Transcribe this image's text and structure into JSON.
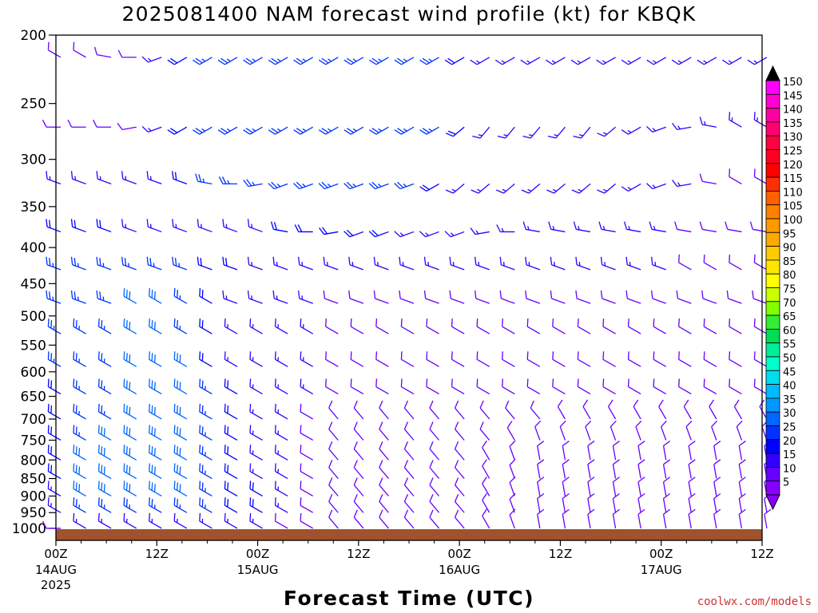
{
  "chart_data": {
    "type": "wind_barb_time_height",
    "title": "2025081400 NAM forecast wind profile (kt) for KBQK",
    "xlabel": "Forecast Time (UTC)",
    "credit": "coolwx.com/models",
    "credit_color": "#cc3333",
    "ground_color": "#a0522d",
    "y_axis": {
      "type": "log",
      "range": [
        1040,
        200
      ],
      "ticks": [
        200,
        250,
        300,
        350,
        400,
        450,
        500,
        550,
        600,
        650,
        700,
        750,
        800,
        850,
        900,
        950,
        1000
      ]
    },
    "x_axis": {
      "range": [
        "2025-08-14 00Z",
        "2025-08-17 12Z"
      ],
      "ticks": [
        {
          "label": "00Z",
          "sublabel": "14AUG",
          "sublabel2": "2025"
        },
        {
          "label": "12Z",
          "sublabel": "",
          "sublabel2": ""
        },
        {
          "label": "00Z",
          "sublabel": "15AUG",
          "sublabel2": ""
        },
        {
          "label": "12Z",
          "sublabel": "",
          "sublabel2": ""
        },
        {
          "label": "00Z",
          "sublabel": "16AUG",
          "sublabel2": ""
        },
        {
          "label": "12Z",
          "sublabel": "",
          "sublabel2": ""
        },
        {
          "label": "00Z",
          "sublabel": "17AUG",
          "sublabel2": ""
        },
        {
          "label": "12Z",
          "sublabel": "",
          "sublabel2": ""
        }
      ]
    },
    "forecast_times_h": [
      0,
      3,
      6,
      9,
      12,
      15,
      18,
      21,
      24,
      27,
      30,
      33,
      36,
      39,
      42,
      45,
      48,
      51,
      54,
      57,
      60,
      63,
      66,
      69,
      72,
      75,
      78,
      81,
      84
    ],
    "barb_levels_hpa": [
      215,
      270,
      325,
      380,
      430,
      480,
      530,
      590,
      645,
      700,
      750,
      800,
      850,
      900,
      950,
      1000
    ],
    "wind_speed_kt_by_level": [
      [
        10,
        10,
        10,
        10,
        15,
        20,
        25,
        25,
        25,
        25,
        25,
        25,
        25,
        25,
        25,
        25,
        20,
        15,
        15,
        15,
        15,
        15,
        15,
        15,
        15,
        15,
        15,
        15,
        15
      ],
      [
        10,
        10,
        10,
        10,
        15,
        20,
        25,
        25,
        25,
        25,
        25,
        25,
        25,
        25,
        25,
        25,
        20,
        15,
        15,
        15,
        15,
        15,
        15,
        15,
        15,
        15,
        15,
        15,
        15
      ],
      [
        15,
        15,
        15,
        15,
        15,
        20,
        25,
        25,
        25,
        25,
        25,
        25,
        25,
        25,
        25,
        20,
        15,
        15,
        15,
        15,
        15,
        15,
        15,
        15,
        15,
        15,
        10,
        10,
        10
      ],
      [
        20,
        20,
        20,
        15,
        15,
        15,
        15,
        15,
        15,
        20,
        20,
        20,
        20,
        20,
        15,
        15,
        15,
        15,
        15,
        15,
        15,
        15,
        15,
        15,
        15,
        10,
        10,
        10,
        10
      ],
      [
        25,
        25,
        25,
        25,
        25,
        25,
        20,
        20,
        15,
        15,
        15,
        15,
        15,
        15,
        15,
        15,
        15,
        15,
        15,
        15,
        15,
        15,
        15,
        15,
        15,
        10,
        10,
        10,
        10
      ],
      [
        25,
        25,
        25,
        30,
        30,
        25,
        20,
        15,
        15,
        15,
        15,
        10,
        10,
        10,
        10,
        10,
        10,
        10,
        10,
        10,
        10,
        10,
        10,
        10,
        10,
        10,
        10,
        10,
        10
      ],
      [
        25,
        25,
        25,
        30,
        30,
        25,
        20,
        15,
        15,
        15,
        15,
        10,
        10,
        10,
        10,
        10,
        10,
        10,
        10,
        10,
        10,
        10,
        10,
        10,
        10,
        10,
        10,
        10,
        10
      ],
      [
        25,
        25,
        25,
        30,
        30,
        30,
        20,
        15,
        15,
        15,
        15,
        10,
        10,
        10,
        10,
        10,
        10,
        10,
        10,
        10,
        10,
        10,
        10,
        10,
        10,
        10,
        10,
        10,
        10
      ],
      [
        20,
        25,
        25,
        30,
        30,
        30,
        25,
        20,
        15,
        15,
        15,
        10,
        10,
        10,
        10,
        10,
        10,
        10,
        10,
        10,
        10,
        10,
        10,
        10,
        10,
        10,
        10,
        10,
        10
      ],
      [
        20,
        25,
        25,
        30,
        30,
        30,
        25,
        20,
        15,
        15,
        10,
        10,
        10,
        10,
        10,
        10,
        10,
        10,
        10,
        10,
        10,
        10,
        10,
        10,
        10,
        10,
        10,
        10,
        10
      ],
      [
        20,
        25,
        30,
        30,
        30,
        30,
        25,
        20,
        15,
        15,
        10,
        10,
        10,
        10,
        10,
        10,
        10,
        10,
        10,
        10,
        10,
        10,
        10,
        10,
        10,
        10,
        10,
        10,
        10
      ],
      [
        20,
        30,
        30,
        30,
        30,
        30,
        25,
        20,
        15,
        15,
        10,
        10,
        10,
        10,
        10,
        10,
        10,
        10,
        10,
        10,
        10,
        10,
        10,
        10,
        10,
        10,
        10,
        10,
        10
      ],
      [
        20,
        30,
        30,
        30,
        30,
        30,
        25,
        20,
        15,
        15,
        10,
        10,
        10,
        10,
        10,
        10,
        10,
        10,
        10,
        10,
        10,
        10,
        10,
        10,
        10,
        10,
        10,
        10,
        10
      ],
      [
        15,
        30,
        30,
        30,
        30,
        30,
        25,
        20,
        20,
        15,
        10,
        10,
        10,
        10,
        10,
        10,
        10,
        10,
        10,
        10,
        10,
        10,
        10,
        10,
        10,
        10,
        10,
        10,
        10
      ],
      [
        15,
        25,
        25,
        25,
        25,
        25,
        25,
        20,
        20,
        15,
        10,
        10,
        10,
        10,
        10,
        10,
        10,
        10,
        10,
        10,
        10,
        10,
        10,
        10,
        10,
        10,
        10,
        10,
        10
      ],
      [
        10,
        15,
        15,
        15,
        15,
        15,
        15,
        15,
        15,
        10,
        10,
        10,
        10,
        10,
        10,
        10,
        10,
        10,
        10,
        10,
        10,
        10,
        10,
        10,
        10,
        10,
        10,
        10,
        10
      ]
    ],
    "wind_dir_deg_by_level": [
      [
        300,
        300,
        280,
        270,
        250,
        240,
        240,
        240,
        240,
        240,
        240,
        240,
        240,
        240,
        240,
        240,
        240,
        240,
        240,
        240,
        240,
        240,
        240,
        240,
        240,
        240,
        240,
        240,
        240
      ],
      [
        270,
        270,
        270,
        260,
        250,
        240,
        240,
        240,
        240,
        240,
        240,
        240,
        240,
        240,
        240,
        240,
        230,
        220,
        220,
        220,
        220,
        220,
        230,
        240,
        250,
        260,
        280,
        300,
        300
      ],
      [
        290,
        290,
        290,
        290,
        290,
        290,
        280,
        270,
        260,
        250,
        250,
        250,
        250,
        250,
        250,
        240,
        230,
        230,
        230,
        230,
        230,
        230,
        230,
        240,
        250,
        260,
        280,
        300,
        300
      ],
      [
        290,
        290,
        290,
        290,
        290,
        290,
        290,
        290,
        290,
        280,
        270,
        260,
        250,
        250,
        250,
        250,
        250,
        260,
        270,
        280,
        280,
        280,
        280,
        280,
        280,
        280,
        280,
        280,
        280
      ],
      [
        290,
        290,
        290,
        290,
        290,
        290,
        290,
        290,
        290,
        290,
        290,
        290,
        290,
        290,
        290,
        290,
        290,
        290,
        290,
        290,
        290,
        290,
        290,
        290,
        290,
        300,
        300,
        300,
        300
      ],
      [
        290,
        290,
        290,
        300,
        300,
        300,
        300,
        290,
        290,
        290,
        290,
        290,
        290,
        290,
        290,
        290,
        290,
        290,
        290,
        290,
        290,
        290,
        290,
        290,
        290,
        290,
        290,
        290,
        290
      ],
      [
        300,
        300,
        300,
        300,
        300,
        300,
        300,
        300,
        300,
        300,
        300,
        300,
        300,
        300,
        300,
        300,
        300,
        300,
        300,
        300,
        300,
        300,
        300,
        300,
        300,
        300,
        300,
        300,
        300
      ],
      [
        300,
        300,
        300,
        300,
        300,
        300,
        300,
        300,
        300,
        300,
        300,
        300,
        300,
        300,
        300,
        300,
        300,
        300,
        300,
        300,
        300,
        300,
        300,
        300,
        300,
        300,
        300,
        300,
        300
      ],
      [
        300,
        300,
        300,
        300,
        300,
        300,
        300,
        300,
        300,
        300,
        300,
        300,
        300,
        300,
        300,
        300,
        300,
        300,
        300,
        300,
        300,
        300,
        300,
        300,
        300,
        300,
        300,
        300,
        300
      ],
      [
        300,
        300,
        300,
        300,
        300,
        300,
        300,
        300,
        300,
        300,
        300,
        320,
        320,
        320,
        320,
        320,
        320,
        320,
        320,
        320,
        330,
        330,
        330,
        330,
        330,
        330,
        330,
        330,
        330
      ],
      [
        300,
        300,
        300,
        300,
        300,
        300,
        300,
        300,
        300,
        300,
        300,
        320,
        320,
        320,
        320,
        320,
        320,
        320,
        330,
        340,
        340,
        340,
        340,
        340,
        340,
        340,
        340,
        340,
        340
      ],
      [
        300,
        300,
        300,
        300,
        300,
        300,
        300,
        300,
        300,
        300,
        300,
        320,
        320,
        320,
        320,
        320,
        320,
        330,
        340,
        350,
        350,
        350,
        350,
        350,
        350,
        350,
        350,
        350,
        350
      ],
      [
        300,
        300,
        300,
        300,
        300,
        300,
        300,
        300,
        300,
        300,
        300,
        320,
        320,
        320,
        320,
        320,
        320,
        330,
        340,
        350,
        350,
        350,
        350,
        350,
        350,
        350,
        350,
        350,
        350
      ],
      [
        300,
        300,
        300,
        300,
        300,
        300,
        300,
        300,
        300,
        300,
        300,
        320,
        320,
        320,
        320,
        320,
        320,
        330,
        340,
        350,
        350,
        350,
        350,
        350,
        350,
        350,
        350,
        350,
        350
      ],
      [
        300,
        300,
        300,
        300,
        300,
        300,
        300,
        300,
        300,
        300,
        300,
        320,
        320,
        320,
        320,
        320,
        320,
        330,
        340,
        350,
        350,
        350,
        350,
        350,
        350,
        350,
        350,
        350,
        350
      ],
      [
        270,
        300,
        300,
        300,
        300,
        300,
        300,
        300,
        300,
        300,
        300,
        320,
        320,
        320,
        320,
        320,
        320,
        330,
        340,
        350,
        350,
        350,
        350,
        350,
        350,
        350,
        350,
        350,
        350
      ]
    ],
    "colorbar": {
      "labels": [
        "150",
        "145",
        "140",
        "135",
        "130",
        "125",
        "120",
        "115",
        "110",
        "105",
        "100",
        "95",
        "90",
        "85",
        "80",
        "75",
        "70",
        "65",
        "60",
        "55",
        "50",
        "45",
        "40",
        "35",
        "30",
        "25",
        "20",
        "15",
        "10",
        "5"
      ],
      "colors": [
        "#ff00ff",
        "#ff00d0",
        "#ff00a0",
        "#ff0070",
        "#ff0040",
        "#ff0020",
        "#ff0000",
        "#ff3000",
        "#ff6000",
        "#ff8000",
        "#ff9900",
        "#ffaa00",
        "#ffcc00",
        "#ffe600",
        "#ffff00",
        "#ccff00",
        "#80ff00",
        "#33ee33",
        "#00dd55",
        "#00ee99",
        "#00ffcc",
        "#00ddee",
        "#00bbff",
        "#0099ff",
        "#0066ff",
        "#0033ff",
        "#0000ff",
        "#3300ff",
        "#6600ff",
        "#8800ff"
      ]
    }
  }
}
